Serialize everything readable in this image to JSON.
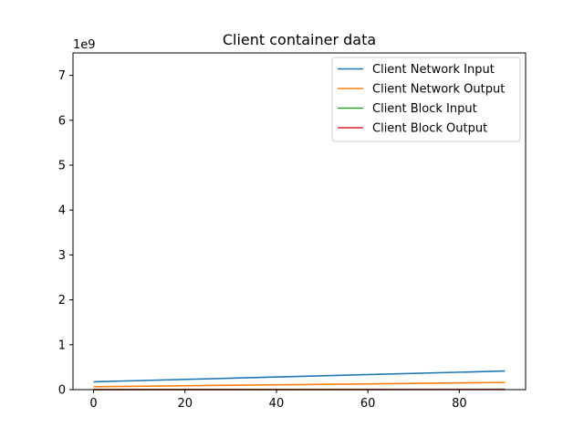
{
  "chart_data": {
    "type": "line",
    "title": "Client container data",
    "xlabel": "",
    "ylabel": "",
    "y_offset_label": "1e9",
    "y_scale": 1000000000,
    "xlim": [
      -4.5,
      94.5
    ],
    "ylim": [
      0,
      7500000000
    ],
    "x_ticks": [
      0,
      20,
      40,
      60,
      80
    ],
    "x_tick_labels": [
      "0",
      "20",
      "40",
      "60",
      "80"
    ],
    "y_ticks": [
      0,
      1000000000,
      2000000000,
      3000000000,
      4000000000,
      5000000000,
      6000000000,
      7000000000
    ],
    "y_tick_labels": [
      "0",
      "1",
      "2",
      "3",
      "4",
      "5",
      "6",
      "7"
    ],
    "grid": false,
    "legend_position": "top-right",
    "x": [
      0,
      90
    ],
    "series": [
      {
        "name": "Client Network Input",
        "color": "#1f77b4",
        "values": [
          175000000,
          415000000
        ]
      },
      {
        "name": "Client Network Output",
        "color": "#ff7f0e",
        "values": [
          65000000,
          160000000
        ]
      },
      {
        "name": "Client Block Input",
        "color": "#2ca02c",
        "values": [
          3000000,
          8000000
        ]
      },
      {
        "name": "Client Block Output",
        "color": "#d62728",
        "values": [
          1000000,
          3000000
        ]
      }
    ]
  }
}
